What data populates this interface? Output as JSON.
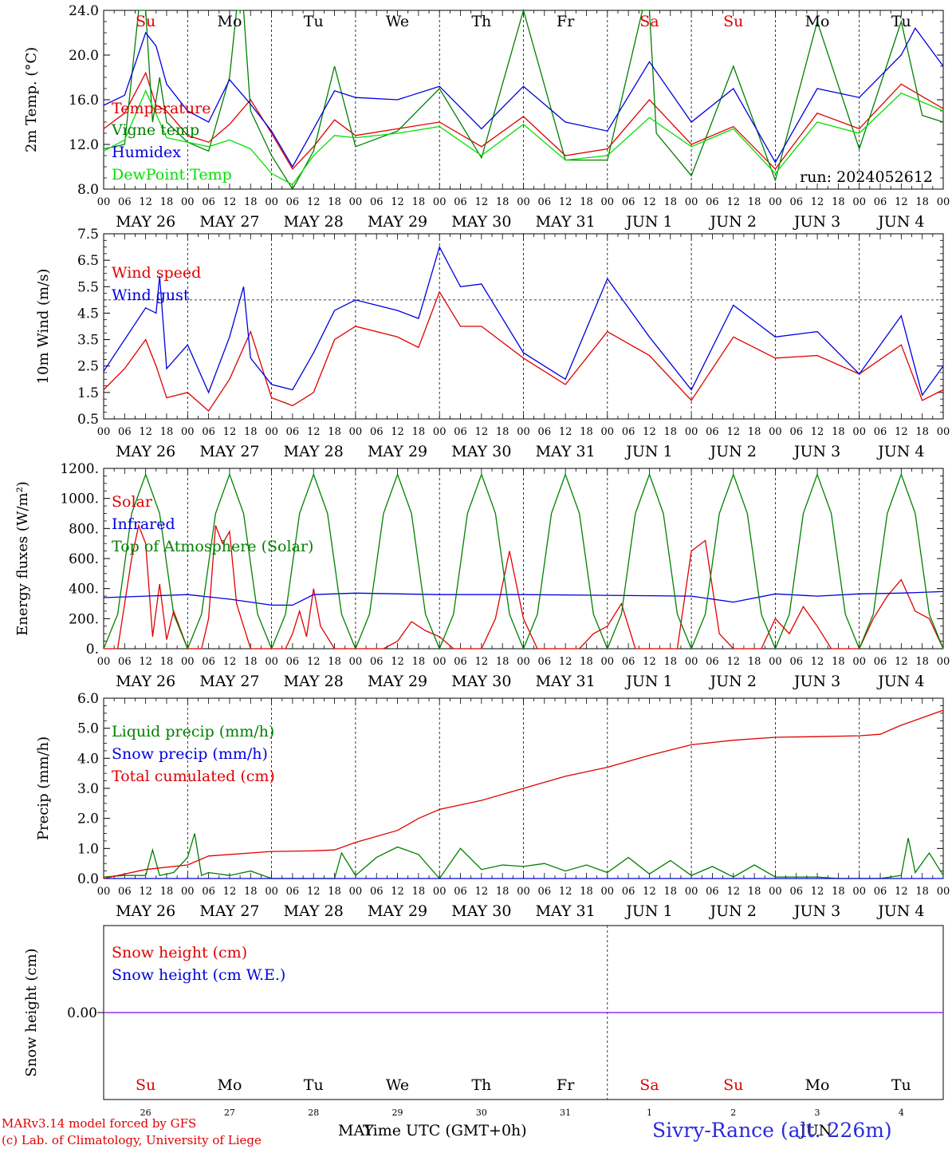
{
  "chart_data": [
    {
      "type": "line",
      "ylabel": "2m Temp. (°C)",
      "ylim": [
        8.0,
        24.0
      ],
      "yticks": [
        "8.0",
        "12.0",
        "16.0",
        "20.0",
        "24.0"
      ],
      "run_label": "run: 2024052612",
      "series": [
        {
          "name": "Temperature",
          "color": "#e00000",
          "x": [
            0,
            6,
            12,
            15,
            18,
            24,
            30,
            36,
            42,
            48,
            54,
            60,
            66,
            72,
            84,
            96,
            108,
            120,
            132,
            144,
            156,
            168,
            180,
            192,
            204,
            216,
            228,
            240
          ],
          "y": [
            13.4,
            14.8,
            18.4,
            15.5,
            15.0,
            12.8,
            12.2,
            13.8,
            16.0,
            13.0,
            9.8,
            11.8,
            14.2,
            12.8,
            13.4,
            14.0,
            11.8,
            14.5,
            11.0,
            11.6,
            16.0,
            12.0,
            13.6,
            9.8,
            14.8,
            13.4,
            17.4,
            15.2
          ]
        },
        {
          "name": "Vigne temp",
          "color": "#008000",
          "x": [
            0,
            6,
            10,
            12,
            14,
            16,
            18,
            24,
            30,
            36,
            38,
            40,
            42,
            48,
            54,
            60,
            66,
            72,
            84,
            96,
            108,
            120,
            132,
            144,
            154,
            156,
            158,
            168,
            180,
            192,
            204,
            216,
            228,
            234,
            240
          ],
          "y": [
            11.6,
            12.0,
            24.0,
            24.0,
            14.0,
            18.0,
            14.0,
            12.2,
            11.4,
            18.0,
            24.0,
            24.0,
            15.0,
            11.0,
            7.6,
            11.4,
            19.0,
            11.8,
            13.2,
            17.0,
            10.8,
            24.0,
            10.6,
            10.6,
            24.0,
            24.0,
            13.0,
            9.2,
            19.0,
            8.8,
            23.0,
            11.6,
            23.0,
            14.6,
            14.0
          ]
        },
        {
          "name": "Humidex",
          "color": "#0000e0",
          "x": [
            0,
            6,
            12,
            15,
            18,
            24,
            30,
            36,
            42,
            48,
            54,
            60,
            66,
            72,
            84,
            96,
            108,
            120,
            132,
            144,
            156,
            168,
            180,
            192,
            204,
            216,
            228,
            232,
            240
          ],
          "y": [
            15.5,
            16.4,
            22.0,
            20.8,
            17.4,
            15.0,
            14.0,
            17.8,
            15.6,
            13.2,
            10.0,
            13.4,
            16.8,
            16.2,
            16.0,
            17.2,
            13.4,
            17.2,
            14.0,
            13.2,
            19.4,
            14.0,
            17.0,
            10.4,
            17.0,
            16.2,
            20.0,
            22.4,
            19.0
          ]
        },
        {
          "name": "DewPoint Temp",
          "color": "#00e000",
          "x": [
            0,
            6,
            12,
            18,
            24,
            30,
            36,
            42,
            48,
            54,
            60,
            66,
            72,
            84,
            96,
            108,
            120,
            132,
            144,
            156,
            168,
            180,
            192,
            204,
            216,
            228,
            240
          ],
          "y": [
            11.4,
            12.4,
            16.8,
            12.6,
            12.2,
            11.8,
            12.4,
            11.6,
            9.4,
            8.4,
            11.0,
            12.8,
            12.6,
            13.0,
            13.6,
            11.0,
            13.8,
            10.6,
            11.0,
            14.4,
            11.8,
            13.4,
            9.4,
            14.0,
            13.0,
            16.6,
            15.0
          ]
        }
      ]
    },
    {
      "type": "line",
      "ylabel": "10m Wind (m/s)",
      "ylim": [
        0.5,
        7.5
      ],
      "yticks": [
        "0.5",
        "1.5",
        "2.5",
        "3.5",
        "4.5",
        "5.5",
        "6.5",
        "7.5"
      ],
      "reference_line": 5.0,
      "series": [
        {
          "name": "Wind speed",
          "color": "#e00000",
          "x": [
            0,
            6,
            12,
            15,
            18,
            24,
            30,
            36,
            42,
            48,
            54,
            60,
            66,
            72,
            84,
            90,
            96,
            102,
            108,
            120,
            132,
            144,
            156,
            168,
            180,
            192,
            204,
            216,
            228,
            234,
            240
          ],
          "y": [
            1.6,
            2.4,
            3.5,
            2.5,
            1.3,
            1.5,
            0.8,
            2.0,
            3.8,
            1.3,
            1.0,
            1.5,
            3.5,
            4.0,
            3.6,
            3.2,
            5.3,
            4.0,
            4.0,
            2.8,
            1.8,
            3.8,
            2.9,
            1.2,
            3.6,
            2.8,
            2.9,
            2.2,
            3.3,
            1.2,
            1.6
          ]
        },
        {
          "name": "Wind gust",
          "color": "#0000e0",
          "x": [
            0,
            6,
            12,
            15,
            16,
            18,
            24,
            30,
            36,
            40,
            42,
            48,
            54,
            60,
            66,
            72,
            84,
            90,
            96,
            102,
            108,
            120,
            132,
            144,
            156,
            168,
            180,
            192,
            204,
            216,
            228,
            234,
            240
          ],
          "y": [
            2.3,
            3.5,
            4.7,
            4.5,
            5.9,
            2.4,
            3.3,
            1.5,
            3.6,
            5.5,
            2.8,
            1.8,
            1.6,
            3.0,
            4.6,
            5.0,
            4.6,
            4.3,
            7.0,
            5.5,
            5.6,
            3.0,
            2.0,
            5.8,
            3.6,
            1.6,
            4.8,
            3.6,
            3.8,
            2.2,
            4.4,
            1.4,
            2.5
          ]
        }
      ]
    },
    {
      "type": "line",
      "ylabel": "Energy fluxes (W/m²)",
      "ylim": [
        0,
        1200
      ],
      "yticks": [
        "0.",
        "200.",
        "400.",
        "600.",
        "800.",
        "1000.",
        "1200."
      ],
      "series": [
        {
          "name": "Solar",
          "color": "#e00000",
          "x": [
            0,
            4,
            8,
            10,
            12,
            14,
            16,
            18,
            20,
            24,
            28,
            30,
            32,
            34,
            36,
            38,
            40,
            42,
            44,
            48,
            52,
            54,
            56,
            58,
            60,
            62,
            66,
            72,
            76,
            80,
            84,
            88,
            92,
            96,
            100,
            104,
            108,
            112,
            116,
            120,
            124,
            128,
            132,
            136,
            140,
            144,
            148,
            152,
            156,
            160,
            164,
            168,
            172,
            176,
            180,
            184,
            188,
            192,
            196,
            200,
            204,
            208,
            212,
            216,
            220,
            224,
            228,
            232,
            236,
            240
          ],
          "y": [
            0,
            0,
            600,
            820,
            700,
            80,
            430,
            60,
            250,
            0,
            0,
            200,
            820,
            700,
            780,
            300,
            150,
            0,
            0,
            0,
            0,
            100,
            250,
            80,
            400,
            150,
            0,
            0,
            0,
            0,
            50,
            180,
            120,
            80,
            0,
            0,
            0,
            200,
            650,
            200,
            0,
            0,
            0,
            0,
            100,
            150,
            300,
            0,
            0,
            0,
            0,
            650,
            720,
            100,
            0,
            0,
            0,
            200,
            100,
            280,
            150,
            0,
            0,
            0,
            200,
            350,
            460,
            250,
            200,
            0
          ]
        },
        {
          "name": "Infrared",
          "color": "#0000e0",
          "x": [
            0,
            12,
            24,
            36,
            48,
            54,
            60,
            72,
            96,
            120,
            144,
            168,
            180,
            192,
            204,
            216,
            228,
            240
          ],
          "y": [
            340,
            350,
            360,
            330,
            290,
            290,
            360,
            370,
            360,
            360,
            355,
            350,
            310,
            365,
            350,
            365,
            370,
            380
          ]
        },
        {
          "name": "Top of Atmosphere (Solar)",
          "color": "#008000",
          "x": [
            0,
            4,
            8,
            12,
            16,
            20,
            24,
            28,
            32,
            36,
            40,
            44,
            48,
            52,
            56,
            60,
            64,
            68,
            72,
            76,
            80,
            84,
            88,
            92,
            96,
            100,
            104,
            108,
            112,
            116,
            120,
            124,
            128,
            132,
            136,
            140,
            144,
            148,
            152,
            156,
            160,
            164,
            168,
            172,
            176,
            180,
            184,
            188,
            192,
            196,
            200,
            204,
            208,
            212,
            216,
            220,
            224,
            228,
            232,
            236,
            240
          ],
          "y": [
            0,
            230,
            900,
            1160,
            900,
            230,
            0,
            230,
            900,
            1160,
            900,
            230,
            0,
            230,
            900,
            1160,
            900,
            230,
            0,
            230,
            900,
            1160,
            900,
            230,
            0,
            230,
            900,
            1160,
            900,
            230,
            0,
            230,
            900,
            1160,
            900,
            230,
            0,
            230,
            900,
            1160,
            900,
            230,
            0,
            230,
            900,
            1160,
            900,
            230,
            0,
            230,
            900,
            1160,
            900,
            230,
            0,
            230,
            900,
            1160,
            900,
            230,
            0
          ]
        }
      ]
    },
    {
      "type": "line",
      "ylabel": "Precip (mm/h)",
      "ylim": [
        0.0,
        6.0
      ],
      "yticks": [
        "0.0",
        "1.0",
        "2.0",
        "3.0",
        "4.0",
        "5.0",
        "6.0"
      ],
      "series": [
        {
          "name": "Liquid precip (mm/h)",
          "color": "#008000",
          "x": [
            0,
            6,
            12,
            14,
            16,
            20,
            24,
            26,
            28,
            30,
            36,
            42,
            48,
            60,
            66,
            68,
            72,
            78,
            84,
            90,
            96,
            102,
            108,
            114,
            120,
            126,
            132,
            138,
            144,
            150,
            156,
            162,
            168,
            174,
            180,
            186,
            192,
            198,
            204,
            210,
            216,
            222,
            228,
            230,
            232,
            236,
            240
          ],
          "y": [
            0.05,
            0.1,
            0.1,
            0.95,
            0.1,
            0.2,
            0.7,
            1.5,
            0.1,
            0.2,
            0.1,
            0.25,
            0.0,
            0.0,
            0.0,
            0.85,
            0.1,
            0.7,
            1.05,
            0.8,
            0.0,
            1.0,
            0.3,
            0.45,
            0.4,
            0.5,
            0.25,
            0.45,
            0.2,
            0.7,
            0.15,
            0.6,
            0.1,
            0.4,
            0.05,
            0.45,
            0.05,
            0.05,
            0.05,
            0.0,
            0.0,
            0.0,
            0.1,
            1.35,
            0.2,
            0.85,
            0.1
          ]
        },
        {
          "name": "Snow precip (mm/h)",
          "color": "#0000e0",
          "x": [
            0,
            240
          ],
          "y": [
            0.0,
            0.0
          ]
        },
        {
          "name": "Total cumulated (cm)",
          "color": "#e00000",
          "x": [
            0,
            12,
            24,
            30,
            48,
            60,
            66,
            72,
            84,
            90,
            96,
            108,
            120,
            132,
            144,
            156,
            168,
            180,
            192,
            204,
            216,
            222,
            228,
            234,
            240
          ],
          "y": [
            0.0,
            0.3,
            0.45,
            0.75,
            0.9,
            0.92,
            0.95,
            1.2,
            1.6,
            2.0,
            2.3,
            2.6,
            3.0,
            3.4,
            3.7,
            4.1,
            4.45,
            4.6,
            4.7,
            4.72,
            4.75,
            4.8,
            5.1,
            5.35,
            5.6
          ]
        }
      ]
    },
    {
      "type": "line",
      "ylabel": "Snow height (cm)",
      "yticks": [
        "0.00"
      ],
      "series": [
        {
          "name": "Snow height (cm)",
          "color": "#e00000",
          "x": [
            0,
            240
          ],
          "y": [
            0.0,
            0.0
          ]
        },
        {
          "name": "Snow height (cm W.E.)",
          "color": "#0000e0",
          "x": [
            0,
            240
          ],
          "y": [
            0.0,
            0.0
          ]
        }
      ]
    }
  ],
  "time_axis": {
    "hour_ticks": [
      "00",
      "06",
      "12",
      "18"
    ],
    "date_labels": [
      "MAY 26",
      "MAY 27",
      "MAY 28",
      "MAY 29",
      "MAY 30",
      "MAY 31",
      "JUN  1",
      "JUN  2",
      "JUN  3",
      "JUN  4"
    ],
    "weekdays": [
      "Su",
      "Mo",
      "Tu",
      "We",
      "Th",
      "Fr",
      "Sa",
      "Su",
      "Mo",
      "Tu"
    ],
    "weekday_colors": [
      "#e00000",
      "#000000",
      "#000000",
      "#000000",
      "#000000",
      "#000000",
      "#e00000",
      "#e00000",
      "#000000",
      "#000000"
    ],
    "day_numbers": [
      "26",
      "27",
      "28",
      "29",
      "30",
      "31",
      "1",
      "2",
      "3",
      "4"
    ],
    "month_may": "MAY",
    "month_jun": "JUN",
    "xlabel": "Time UTC (GMT+0h)"
  },
  "footer": {
    "credit_line1": "MARv3.14 model forced by GFS",
    "credit_line2": "(c) Lab. of Climatology, University of Liege",
    "station": "Sivry-Rance (alt. 226m)"
  }
}
